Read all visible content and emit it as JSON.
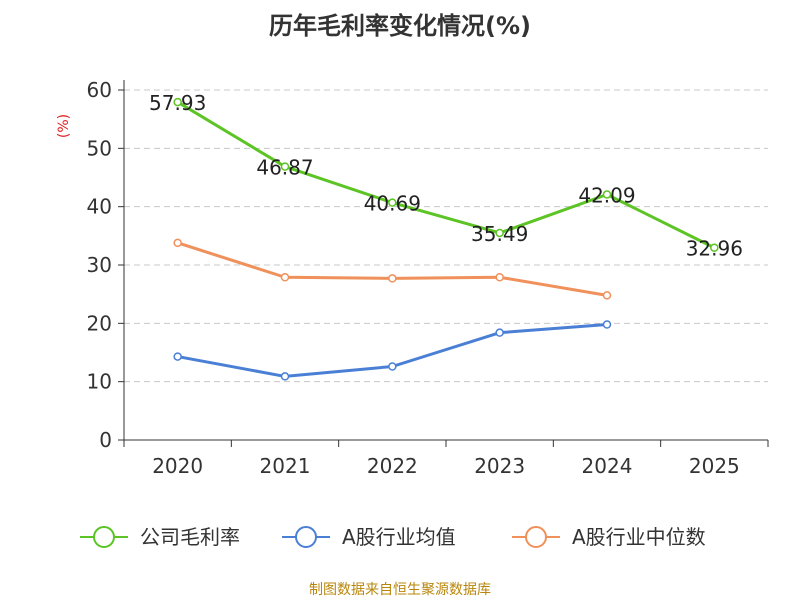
{
  "chart_data": {
    "type": "line",
    "title": "历年毛利率变化情况(%)",
    "ylabel": "(%)",
    "xlabel": "",
    "categories": [
      "2020",
      "2021",
      "2022",
      "2023",
      "2024",
      "2025"
    ],
    "ylim": [
      0,
      60
    ],
    "yticks": [
      0,
      10,
      20,
      30,
      40,
      50,
      60
    ],
    "grid": true,
    "legend": "bottom",
    "series": [
      {
        "name": "公司毛利率",
        "color": "#5cc424",
        "values": [
          57.93,
          46.87,
          40.69,
          35.49,
          42.09,
          32.96
        ],
        "labels": [
          "57.93",
          "46.87",
          "40.69",
          "35.49",
          "42.09",
          "32.96"
        ]
      },
      {
        "name": "A股行业均值",
        "color": "#4a7fd6",
        "values": [
          14.3,
          10.9,
          12.6,
          18.4,
          19.8,
          null
        ]
      },
      {
        "name": "A股行业中位数",
        "color": "#f0905a",
        "values": [
          33.8,
          27.9,
          27.7,
          27.9,
          24.8,
          null
        ]
      }
    ],
    "source": "制图数据来自恒生聚源数据库"
  }
}
